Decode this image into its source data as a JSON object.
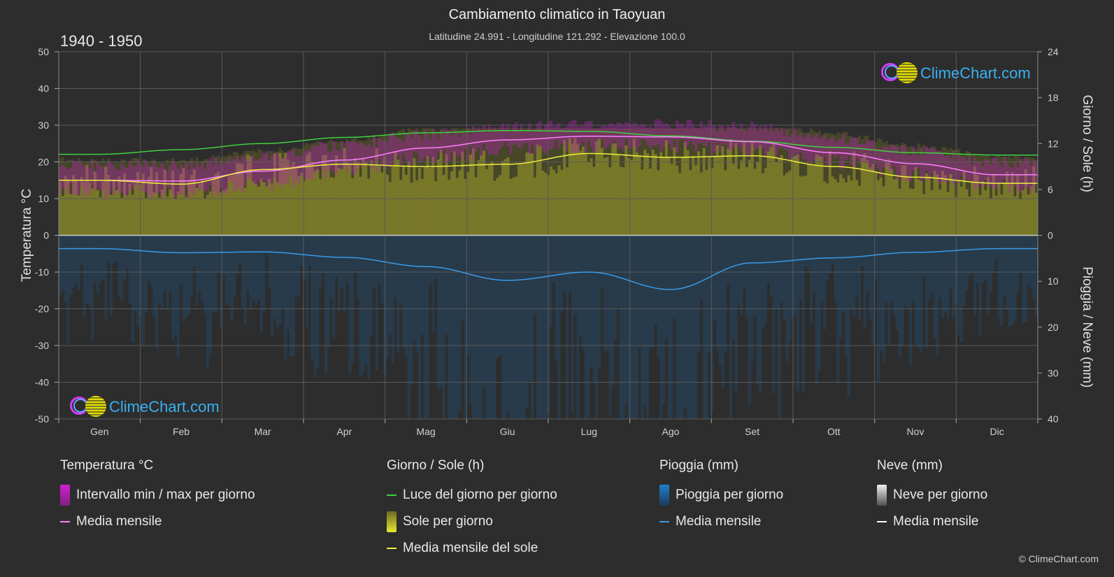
{
  "header": {
    "title": "Cambiamento climatico in Taoyuan",
    "subtitle": "Latitudine 24.991 - Longitudine 121.292 - Elevazione 100.0",
    "period": "1940 - 1950"
  },
  "brand": {
    "text": "ClimeChart.com",
    "copyright": "© ClimeChart.com"
  },
  "colors": {
    "background": "#2d2d2d",
    "daylight": "#3fd13f",
    "sunshine_fill": "#b8b830",
    "sunshine_mean": "#f0f040",
    "temp_range": "#d020d0",
    "temp_mean": "#ff80ff",
    "rain": "#1e6fb5",
    "rain_mean": "#3a9ae8",
    "snow_mean": "#ffffff"
  },
  "legend": {
    "temperature": {
      "title": "Temperatura °C",
      "items": [
        {
          "label": "Intervallo min / max per giorno",
          "type": "box",
          "color": "#d020d0"
        },
        {
          "label": "Media mensile",
          "type": "line",
          "color": "#ff80ff"
        }
      ]
    },
    "sun": {
      "title": "Giorno / Sole (h)",
      "items": [
        {
          "label": "Luce del giorno per giorno",
          "type": "line",
          "color": "#3fd13f"
        },
        {
          "label": "Sole per giorno",
          "type": "box",
          "color": "#d8d830"
        },
        {
          "label": "Media mensile del sole",
          "type": "line",
          "color": "#f0f040"
        }
      ]
    },
    "rain": {
      "title": "Pioggia (mm)",
      "items": [
        {
          "label": "Pioggia per giorno",
          "type": "box",
          "color": "#1e7fd0"
        },
        {
          "label": "Media mensile",
          "type": "line",
          "color": "#3a9ae8"
        }
      ]
    },
    "snow": {
      "title": "Neve (mm)",
      "items": [
        {
          "label": "Neve per giorno",
          "type": "box",
          "color": "#d8d8d8"
        },
        {
          "label": "Media mensile",
          "type": "line",
          "color": "#ffffff"
        }
      ]
    }
  },
  "chart_data": {
    "type": "area",
    "categories": [
      "Gen",
      "Feb",
      "Mar",
      "Apr",
      "Mag",
      "Giu",
      "Lug",
      "Ago",
      "Set",
      "Ott",
      "Nov",
      "Dic"
    ],
    "y_left": {
      "label": "Temperatura °C",
      "range": [
        -50,
        50
      ],
      "ticks": [
        50,
        40,
        30,
        20,
        10,
        0,
        -10,
        -20,
        -30,
        -40,
        -50
      ]
    },
    "y_right_top": {
      "label": "Giorno / Sole (h)",
      "range": [
        0,
        24
      ],
      "ticks": [
        24,
        18,
        12,
        6,
        0
      ]
    },
    "y_right_bottom": {
      "label": "Pioggia / Neve (mm)",
      "range": [
        0,
        40
      ],
      "ticks": [
        0,
        10,
        20,
        30,
        40
      ]
    },
    "grid": true,
    "series": [
      {
        "name": "Luce del giorno per giorno",
        "axis": "sun_h",
        "values": [
          10.6,
          11.2,
          12.0,
          12.8,
          13.4,
          13.7,
          13.6,
          13.0,
          12.3,
          11.5,
          10.8,
          10.5
        ]
      },
      {
        "name": "Media mensile del sole",
        "axis": "sun_h",
        "values": [
          7.2,
          6.7,
          8.6,
          9.3,
          9.0,
          9.3,
          10.7,
          10.2,
          10.4,
          9.0,
          7.6,
          6.8
        ]
      },
      {
        "name": "Media mensile",
        "axis": "temp_c",
        "values": [
          15.0,
          14.8,
          17.5,
          20.5,
          23.8,
          26.0,
          27.0,
          26.8,
          25.5,
          22.5,
          19.5,
          16.5
        ]
      },
      {
        "name": "Intervallo min",
        "axis": "temp_c",
        "values": [
          12.0,
          11.8,
          14.0,
          17.5,
          21.0,
          23.5,
          24.5,
          24.3,
          23.0,
          20.0,
          16.5,
          13.5
        ]
      },
      {
        "name": "Intervallo max",
        "axis": "temp_c",
        "values": [
          19.0,
          19.0,
          21.5,
          24.5,
          27.5,
          29.5,
          30.5,
          30.5,
          29.5,
          26.5,
          23.0,
          20.0
        ]
      },
      {
        "name": "Pioggia media mensile",
        "axis": "rain_mm",
        "values": [
          2.9,
          3.8,
          3.6,
          4.8,
          6.8,
          9.8,
          8.0,
          11.8,
          6.0,
          4.9,
          3.7,
          2.9
        ]
      }
    ]
  }
}
